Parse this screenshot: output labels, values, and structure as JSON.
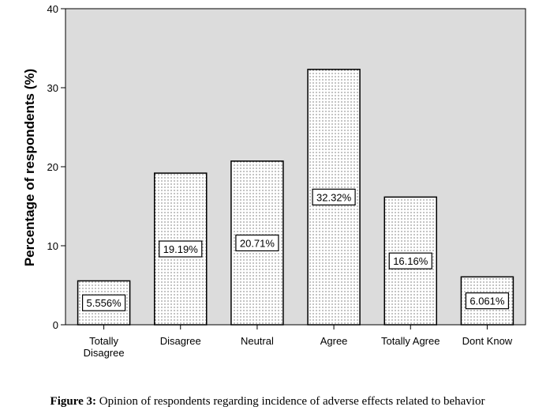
{
  "caption": {
    "label": "Figure 3:",
    "text": "Opinion of respondents regarding incidence of adverse effects related to behavior"
  },
  "chart_data": {
    "type": "bar",
    "categories": [
      [
        "Totally",
        "Disagree"
      ],
      [
        "Disagree"
      ],
      [
        "Neutral"
      ],
      [
        "Agree"
      ],
      [
        "Totally Agree"
      ],
      [
        "Dont Know"
      ]
    ],
    "values": [
      5.556,
      19.19,
      20.71,
      32.32,
      16.16,
      6.061
    ],
    "data_labels": [
      "5.556%",
      "19.19%",
      "20.71%",
      "32.32%",
      "16.16%",
      "6.061%"
    ],
    "ylabel": "Percentage of respondents (%)",
    "xlabel": "",
    "ylim": [
      0,
      40
    ],
    "yticks": [
      0,
      10,
      20,
      30,
      40
    ],
    "grid": false,
    "plot_background": "#dcdcdc",
    "bar_fill": "#ffffff",
    "bar_pattern": "dots"
  }
}
